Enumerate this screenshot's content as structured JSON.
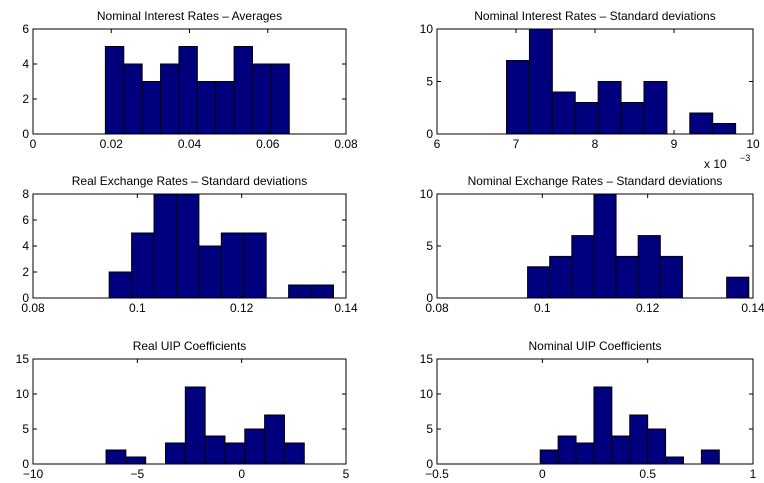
{
  "chart_data": [
    {
      "type": "bar",
      "title": "Nominal Interest Rates – Averages",
      "xlim": [
        0,
        0.08
      ],
      "ylim": [
        0,
        6
      ],
      "xticks": [
        0,
        0.02,
        0.04,
        0.06,
        0.08
      ],
      "xtick_labels": [
        "0",
        "0.02",
        "0.04",
        "0.06",
        "0.08"
      ],
      "yticks": [
        0,
        2,
        4,
        6
      ],
      "ytick_labels": [
        "0",
        "2",
        "4",
        "6"
      ],
      "multiplier": "",
      "bin_edges": [
        0.0185,
        0.0232,
        0.0279,
        0.0326,
        0.0373,
        0.042,
        0.0467,
        0.0514,
        0.0561,
        0.0608,
        0.0655
      ],
      "values": [
        5,
        4,
        3,
        4,
        5,
        3,
        3,
        5,
        4,
        4
      ],
      "color": "#00007F"
    },
    {
      "type": "bar",
      "title": "Nominal Interest Rates – Standard deviations",
      "xlim": [
        0.006,
        0.01
      ],
      "ylim": [
        0,
        10
      ],
      "xticks": [
        0.006,
        0.007,
        0.008,
        0.009,
        0.01
      ],
      "xtick_labels": [
        "6",
        "7",
        "8",
        "9",
        "10"
      ],
      "yticks": [
        0,
        5,
        10
      ],
      "ytick_labels": [
        "0",
        "5",
        "10"
      ],
      "multiplier": "x 10",
      "multiplier_exp": "−3",
      "bin_edges": [
        0.00688,
        0.00717,
        0.00746,
        0.00775,
        0.00804,
        0.00833,
        0.00862,
        0.00891,
        0.0092,
        0.00949,
        0.00978
      ],
      "values": [
        7,
        10,
        4,
        3,
        5,
        3,
        5,
        0,
        2,
        1
      ],
      "color": "#00007F"
    },
    {
      "type": "bar",
      "title": "Real Exchange Rates – Standard deviations",
      "xlim": [
        0.08,
        0.14
      ],
      "ylim": [
        0,
        8
      ],
      "xticks": [
        0.08,
        0.1,
        0.12,
        0.14
      ],
      "xtick_labels": [
        "0.08",
        "0.1",
        "0.12",
        "0.14"
      ],
      "yticks": [
        0,
        2,
        4,
        6,
        8
      ],
      "ytick_labels": [
        "0",
        "2",
        "4",
        "6",
        "8"
      ],
      "multiplier": "",
      "bin_edges": [
        0.0946,
        0.0989,
        0.1032,
        0.1075,
        0.1118,
        0.1161,
        0.1204,
        0.1247,
        0.129,
        0.1333,
        0.1376
      ],
      "values": [
        2,
        5,
        8,
        8,
        4,
        5,
        5,
        0,
        1,
        1
      ],
      "color": "#00007F"
    },
    {
      "type": "bar",
      "title": "Nominal Exchange Rates – Standard deviations",
      "xlim": [
        0.08,
        0.14
      ],
      "ylim": [
        0,
        10
      ],
      "xticks": [
        0.08,
        0.1,
        0.12,
        0.14
      ],
      "xtick_labels": [
        "0.08",
        "0.1",
        "0.12",
        "0.14"
      ],
      "yticks": [
        0,
        5,
        10
      ],
      "ytick_labels": [
        "0",
        "5",
        "10"
      ],
      "multiplier": "",
      "bin_edges": [
        0.0972,
        0.1014,
        0.1056,
        0.1098,
        0.114,
        0.1182,
        0.1224,
        0.1266,
        0.1308,
        0.135,
        0.1392
      ],
      "values": [
        3,
        4,
        6,
        10,
        4,
        6,
        4,
        0,
        0,
        2
      ],
      "color": "#00007F"
    },
    {
      "type": "bar",
      "title": "Real UIP Coefficients",
      "xlim": [
        -10,
        5
      ],
      "ylim": [
        0,
        15
      ],
      "xticks": [
        -10,
        -5,
        0,
        5
      ],
      "xtick_labels": [
        "−10",
        "−5",
        "0",
        "5"
      ],
      "yticks": [
        0,
        5,
        10,
        15
      ],
      "ytick_labels": [
        "0",
        "5",
        "10",
        "15"
      ],
      "multiplier": "",
      "bin_edges": [
        -6.5,
        -5.55,
        -4.6,
        -3.65,
        -2.7,
        -1.75,
        -0.8,
        0.15,
        1.1,
        2.05,
        3.0
      ],
      "values": [
        2,
        1,
        0,
        3,
        11,
        4,
        3,
        5,
        7,
        3
      ],
      "color": "#00007F"
    },
    {
      "type": "bar",
      "title": "Nominal UIP Coefficients",
      "xlim": [
        -0.5,
        1
      ],
      "ylim": [
        0,
        15
      ],
      "xticks": [
        -0.5,
        0,
        0.5,
        1
      ],
      "xtick_labels": [
        "−0.5",
        "0",
        "0.5",
        "1"
      ],
      "yticks": [
        0,
        5,
        10,
        15
      ],
      "ytick_labels": [
        "0",
        "5",
        "10",
        "15"
      ],
      "multiplier": "",
      "bin_edges": [
        -0.01,
        0.075,
        0.16,
        0.245,
        0.33,
        0.415,
        0.5,
        0.585,
        0.67,
        0.755,
        0.84
      ],
      "values": [
        2,
        4,
        3,
        11,
        4,
        7,
        5,
        1,
        0,
        2
      ],
      "color": "#00007F"
    }
  ]
}
